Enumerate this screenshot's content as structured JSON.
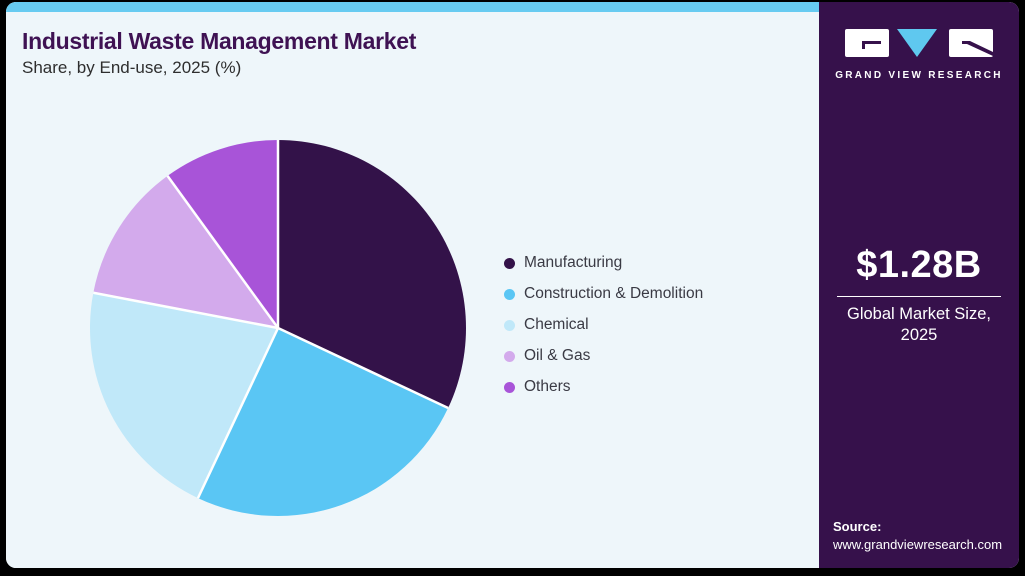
{
  "header": {
    "title": "Industrial Waste Management Market",
    "subtitle": "Share, by End-use, 2025 (%)"
  },
  "chart_data": {
    "type": "pie",
    "title": "Industrial Waste Management Market Share, by End-use, 2025 (%)",
    "categories": [
      "Manufacturing",
      "Construction & Demolition",
      "Chemical",
      "Oil & Gas",
      "Others"
    ],
    "values": [
      32,
      25,
      21,
      12,
      10
    ],
    "unit": "%",
    "colors": [
      "#331249",
      "#5ac6f4",
      "#c0e8f9",
      "#d3aaec",
      "#a854d8"
    ],
    "start_angle_deg": 0,
    "direction": "clockwise",
    "legend_position": "right",
    "slice_separator_color": "#ffffff",
    "data_labels": "none"
  },
  "sidebar": {
    "brand_name": "GRAND VIEW RESEARCH",
    "market_size_value": "$1.28B",
    "market_size_label": "Global Market Size, 2025",
    "source_label": "Source:",
    "source_url": "www.grandviewresearch.com",
    "background_color": "#36114b",
    "logo_accent_blue": "#5fc8ef"
  },
  "theme": {
    "top_bar_color": "#67cbf1",
    "card_background": "#eef6fa",
    "title_color": "#3f1253"
  }
}
